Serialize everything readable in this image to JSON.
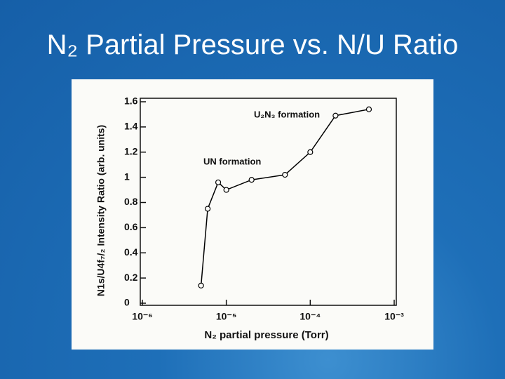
{
  "slide_title": "N₂ Partial Pressure vs. N/U Ratio",
  "chart_data": {
    "type": "line",
    "x_label": "N₂ partial pressure (Torr)",
    "y_label": "N1s/U4f₇/₂ Intensity Ratio (arb. units)",
    "annotations": [
      "U₂N₃ formation",
      "UN formation"
    ],
    "x": [
      5e-06,
      6e-06,
      8e-06,
      1e-05,
      2e-05,
      5e-05,
      0.0001,
      0.0002,
      0.0005
    ],
    "series": [
      {
        "color": "#000000",
        "values": [
          0.14,
          0.75,
          0.96,
          0.9,
          0.98,
          1.02,
          1.2,
          1.49,
          1.54
        ]
      }
    ],
    "xscale": "log",
    "xlim": [
      1e-06,
      0.001
    ],
    "xticks": [
      {
        "value": 1e-06,
        "label": "10⁻⁶"
      },
      {
        "value": 1e-05,
        "label": "10⁻⁵"
      },
      {
        "value": 0.0001,
        "label": "10⁻⁴"
      },
      {
        "value": 0.001,
        "label": "10⁻³"
      }
    ],
    "ylim": [
      0,
      1.6
    ],
    "yticks": [
      0,
      0.2,
      0.4,
      0.6,
      0.8,
      1,
      1.2,
      1.4,
      1.6
    ],
    "grid": false
  }
}
